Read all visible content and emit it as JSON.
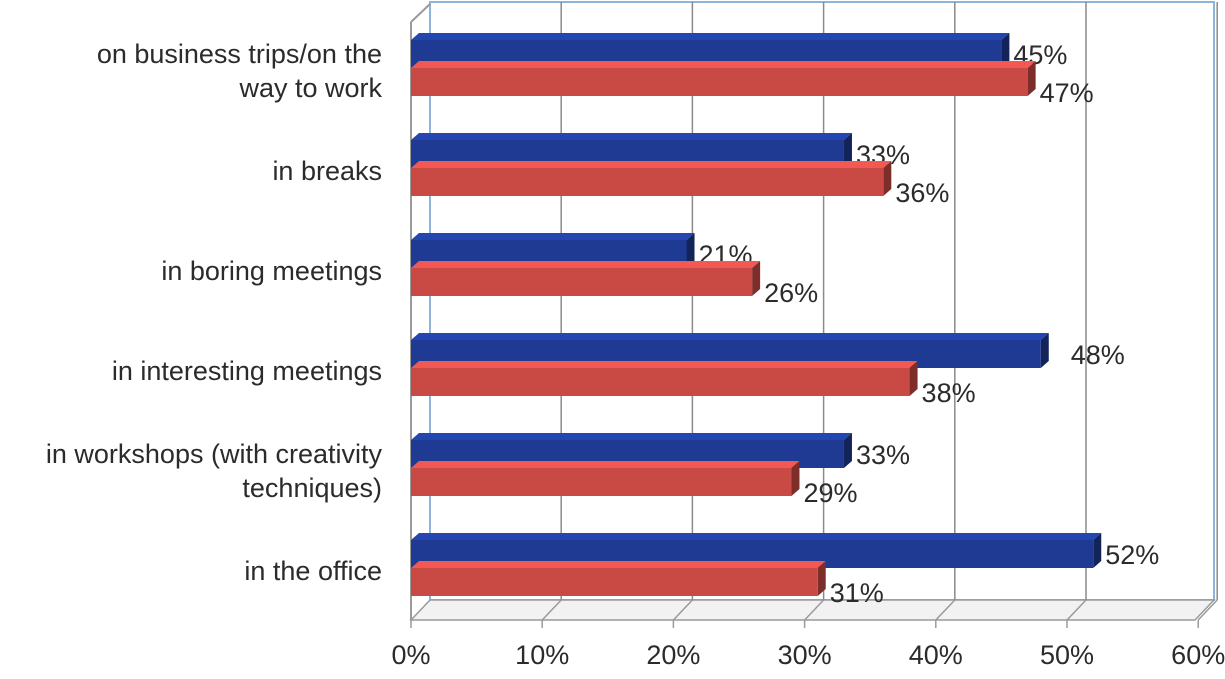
{
  "chart_data": {
    "type": "bar",
    "orientation": "horizontal",
    "style": "3d",
    "title": "",
    "xlabel": "",
    "ylabel": "",
    "xlim": [
      0,
      60
    ],
    "ticks": [
      0,
      10,
      20,
      30,
      40,
      50,
      60
    ],
    "tick_labels": [
      "0%",
      "10%",
      "20%",
      "30%",
      "40%",
      "50%",
      "60%"
    ],
    "grid": "vertical",
    "legend": "none",
    "categories": [
      "on business trips/on the way to work",
      "in breaks",
      "in boring meetings",
      "in interesting meetings",
      "in workshops (with creativity techniques)",
      "in the office"
    ],
    "category_lines": [
      [
        "on business trips/on the",
        "way to work"
      ],
      [
        "in breaks"
      ],
      [
        "in boring meetings"
      ],
      [
        "in interesting meetings"
      ],
      [
        "in workshops (with creativity",
        "techniques)"
      ],
      [
        "in the office"
      ]
    ],
    "series": [
      {
        "color": "#1f3a93",
        "values": [
          45,
          33,
          21,
          48,
          33,
          52
        ],
        "labels": [
          "45%",
          "33%",
          "21%",
          "48%",
          "33%",
          "52%"
        ]
      },
      {
        "color": "#c94a44",
        "values": [
          47,
          36,
          26,
          38,
          29,
          31
        ],
        "labels": [
          "47%",
          "36%",
          "26%",
          "38%",
          "29%",
          "31%"
        ]
      }
    ]
  }
}
